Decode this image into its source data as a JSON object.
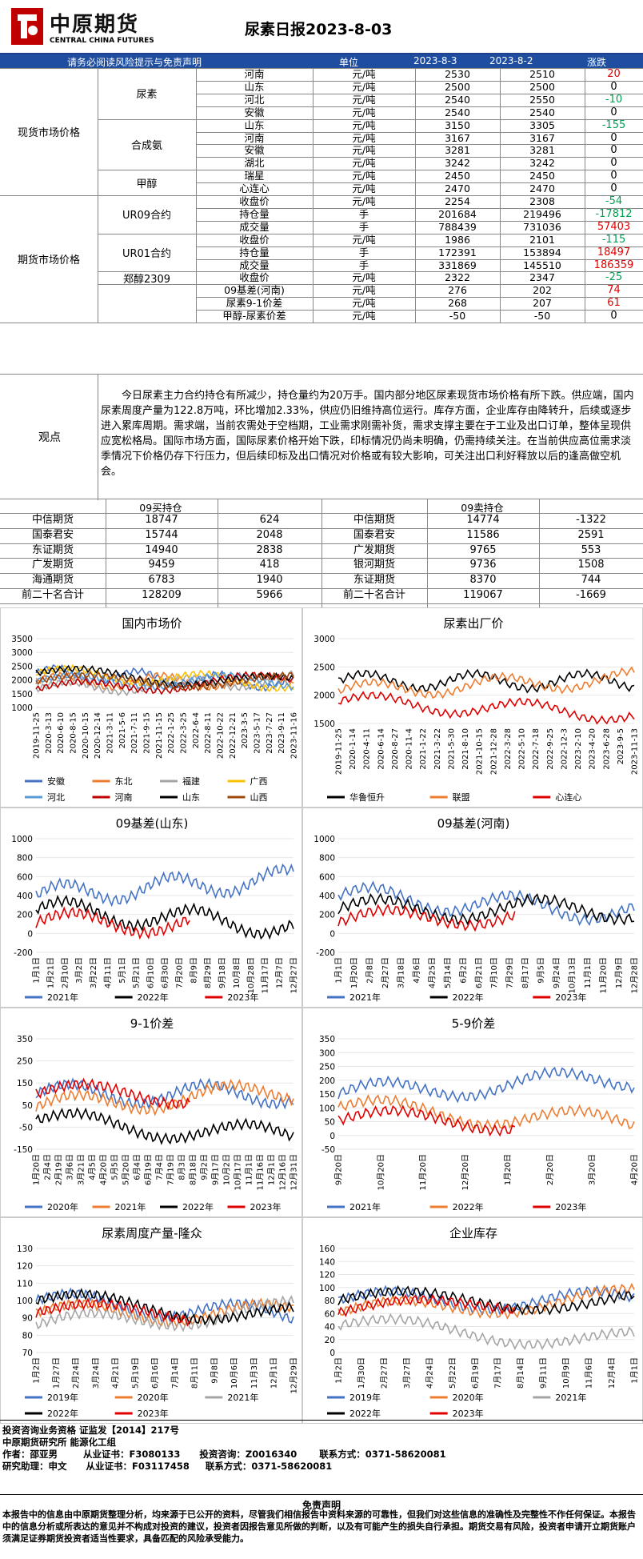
{
  "header": {
    "brand_cn": "中原期货",
    "brand_en": "CENTRAL CHINA FUTURES",
    "title": "尿素日报2023-8-03"
  },
  "table_header": {
    "notice": "请务必阅读风险提示与免责声明",
    "unit": "单位",
    "d1": "2023-8-3",
    "d2": "2023-8-2",
    "chg": "涨跌"
  },
  "spot": {
    "section": "现货市场价格",
    "groups": [
      {
        "name": "尿素",
        "rows": [
          {
            "item": "河南",
            "unit": "元/吨",
            "v1": "2530",
            "v2": "2510",
            "chg": "20",
            "dir": "up"
          },
          {
            "item": "山东",
            "unit": "元/吨",
            "v1": "2500",
            "v2": "2500",
            "chg": "0",
            "dir": "flat"
          },
          {
            "item": "河北",
            "unit": "元/吨",
            "v1": "2540",
            "v2": "2550",
            "chg": "-10",
            "dir": "down"
          },
          {
            "item": "安徽",
            "unit": "元/吨",
            "v1": "2540",
            "v2": "2540",
            "chg": "0",
            "dir": "flat"
          }
        ]
      },
      {
        "name": "合成氨",
        "rows": [
          {
            "item": "山东",
            "unit": "元/吨",
            "v1": "3150",
            "v2": "3305",
            "chg": "-155",
            "dir": "down"
          },
          {
            "item": "河南",
            "unit": "元/吨",
            "v1": "3167",
            "v2": "3167",
            "chg": "0",
            "dir": "flat"
          },
          {
            "item": "安徽",
            "unit": "元/吨",
            "v1": "3281",
            "v2": "3281",
            "chg": "0",
            "dir": "flat"
          },
          {
            "item": "湖北",
            "unit": "元/吨",
            "v1": "3242",
            "v2": "3242",
            "chg": "0",
            "dir": "flat"
          }
        ]
      },
      {
        "name": "甲醇",
        "rows": [
          {
            "item": "瑞星",
            "unit": "元/吨",
            "v1": "2450",
            "v2": "2450",
            "chg": "0",
            "dir": "flat"
          },
          {
            "item": "心连心",
            "unit": "元/吨",
            "v1": "2470",
            "v2": "2470",
            "chg": "0",
            "dir": "flat"
          }
        ]
      }
    ]
  },
  "futures": {
    "section": "期货市场价格",
    "groups": [
      {
        "name": "UR09合约",
        "rows": [
          {
            "item": "收盘价",
            "unit": "元/吨",
            "v1": "2254",
            "v2": "2308",
            "chg": "-54",
            "dir": "down"
          },
          {
            "item": "持仓量",
            "unit": "手",
            "v1": "201684",
            "v2": "219496",
            "chg": "-17812",
            "dir": "down"
          },
          {
            "item": "成交量",
            "unit": "手",
            "v1": "788439",
            "v2": "731036",
            "chg": "57403",
            "dir": "up"
          }
        ]
      },
      {
        "name": "UR01合约",
        "rows": [
          {
            "item": "收盘价",
            "unit": "元/吨",
            "v1": "1986",
            "v2": "2101",
            "chg": "-115",
            "dir": "down"
          },
          {
            "item": "持仓量",
            "unit": "手",
            "v1": "172391",
            "v2": "153894",
            "chg": "18497",
            "dir": "up"
          },
          {
            "item": "成交量",
            "unit": "手",
            "v1": "331869",
            "v2": "145510",
            "chg": "186359",
            "dir": "up"
          }
        ]
      },
      {
        "name": "郑醇2309",
        "rows": [
          {
            "item": "收盘价",
            "unit": "元/吨",
            "v1": "2322",
            "v2": "2347",
            "chg": "-25",
            "dir": "down"
          }
        ]
      },
      {
        "name": "",
        "rows": [
          {
            "item": "09基差(河南)",
            "unit": "元/吨",
            "v1": "276",
            "v2": "202",
            "chg": "74",
            "dir": "up"
          },
          {
            "item": "尿素9-1价差",
            "unit": "元/吨",
            "v1": "268",
            "v2": "207",
            "chg": "61",
            "dir": "up"
          },
          {
            "item": "甲醇-尿素价差",
            "unit": "元/吨",
            "v1": "-50",
            "v2": "-50",
            "chg": "0",
            "dir": "flat"
          }
        ]
      }
    ]
  },
  "view": {
    "label": "观点",
    "text": "今日尿素主力合约持仓有所减少，持仓量约为20万手。国内部分地区尿素现货市场价格有所下跌。供应端，国内尿素周度产量为122.8万吨，环比增加2.33%，供应仍旧维持高位运行。库存方面，企业库存由降转升，后续或逐步进入累库周期。需求端，当前农需处于空档期，工业需求刚需补货，需求支撑主要在于工业及出口订单，整体呈现供应宽松格局。国际市场方面，国际尿素价格开始下跌，印标情况仍尚未明确，仍需持续关注。在当前供应高位需求淡季情况下价格仍存下行压力，但后续印标及出口情况对价格或有较大影响，可关注出口利好释放以后的逢高做空机会。"
  },
  "positions": {
    "buy_title": "09买持仓",
    "sell_title": "09卖持仓",
    "buy": [
      [
        "中信期货",
        "18747",
        "624"
      ],
      [
        "国泰君安",
        "15744",
        "2048"
      ],
      [
        "东证期货",
        "14940",
        "2838"
      ],
      [
        "广发期货",
        "9459",
        "418"
      ],
      [
        "海通期货",
        "6783",
        "1940"
      ],
      [
        "前二十名合计",
        "128209",
        "5966"
      ]
    ],
    "sell": [
      [
        "中信期货",
        "14774",
        "-1322"
      ],
      [
        "国泰君安",
        "11586",
        "2591"
      ],
      [
        "广发期货",
        "9765",
        "553"
      ],
      [
        "银河期货",
        "9736",
        "1508"
      ],
      [
        "东证期货",
        "8370",
        "744"
      ],
      [
        "前二十名合计",
        "119067",
        "-1669"
      ]
    ]
  },
  "chart_data": [
    {
      "type": "line",
      "title": "国内市场价",
      "ylim": [
        1000,
        3500
      ],
      "yticks": [
        "3500",
        "3000",
        "2500",
        "2000",
        "1500",
        "1000"
      ],
      "xticks": [
        "2019-11-25",
        "2020-3-13",
        "2020-6-10",
        "2020-8-15",
        "2020-10-15",
        "2020-12-14",
        "2021-3-11",
        "2021-5-6",
        "2021-7-11",
        "2021-9-15",
        "2021-11-15",
        "2022-1-25",
        "2022-3-25",
        "2022-6-4",
        "2022-8-11",
        "2022-10-22",
        "2022-12-21",
        "2023-3-5",
        "2023-5-17",
        "2023-7-27",
        "2023-9-11",
        "2023-11-16"
      ],
      "series": [
        {
          "name": "安徽",
          "color": "#4472c4"
        },
        {
          "name": "东北",
          "color": "#ed7d31"
        },
        {
          "name": "福建",
          "color": "#a5a5a5"
        },
        {
          "name": "广西",
          "color": "#ffc000"
        },
        {
          "name": "河北",
          "color": "#5b9bd5"
        },
        {
          "name": "河南",
          "color": "#c00000"
        },
        {
          "name": "山东",
          "color": "#000000"
        },
        {
          "name": "山西",
          "color": "#9e480e"
        }
      ]
    },
    {
      "type": "line",
      "title": "尿素出厂价",
      "ylim": [
        1500,
        3000
      ],
      "yticks": [
        "3000",
        "2500",
        "2000",
        "1500"
      ],
      "xticks": [
        "2019-11-25",
        "2020-1-14",
        "2020-4-11",
        "2020-6-14",
        "2020-8-27",
        "2020-11-4",
        "2021-1-22",
        "2021-3-22",
        "2021-5-30",
        "2021-8-10",
        "2021-10-15",
        "2021-12-28",
        "2022-3-28",
        "2022-5-10",
        "2022-7-18",
        "2022-9-25",
        "2022-12-3",
        "2023-2-10",
        "2023-4-20",
        "2023-6-28",
        "2023-9-5",
        "2023-11-13"
      ],
      "series": [
        {
          "name": "华鲁恒升",
          "color": "#000000"
        },
        {
          "name": "联盟",
          "color": "#ed7d31"
        },
        {
          "name": "心连心",
          "color": "#e00000"
        }
      ]
    },
    {
      "type": "line",
      "title": "09基差(山东)",
      "ylim": [
        -200,
        1000
      ],
      "yticks": [
        "1000",
        "800",
        "600",
        "400",
        "200",
        "0",
        "-200"
      ],
      "xticks": [
        "1月1日",
        "1月21日",
        "2月10日",
        "3月2日",
        "3月22日",
        "4月11日",
        "5月1日",
        "5月21日",
        "6月10日",
        "6月30日",
        "7月20日",
        "8月9日",
        "8月29日",
        "9月18日",
        "10月8日",
        "10月28日",
        "11月17日",
        "12月7日",
        "12月27日"
      ],
      "series": [
        {
          "name": "2021年",
          "color": "#4472c4"
        },
        {
          "name": "2022年",
          "color": "#000000"
        },
        {
          "name": "2023年",
          "color": "#e00000"
        }
      ]
    },
    {
      "type": "line",
      "title": "09基差(河南)",
      "ylim": [
        -200,
        1000
      ],
      "yticks": [
        "1000",
        "800",
        "600",
        "400",
        "200",
        "0",
        "-200"
      ],
      "xticks": [
        "1月1日",
        "1月20日",
        "2月8日",
        "2月27日",
        "3月18日",
        "4月6日",
        "4月25日",
        "5月14日",
        "6月2日",
        "6月21日",
        "7月10日",
        "7月29日",
        "8月17日",
        "9月5日",
        "9月24日",
        "10月13日",
        "11月1日",
        "11月20日",
        "12月9日",
        "12月28日"
      ],
      "series": [
        {
          "name": "2021年",
          "color": "#4472c4"
        },
        {
          "name": "2022年",
          "color": "#000000"
        },
        {
          "name": "2023年",
          "color": "#e00000"
        }
      ]
    },
    {
      "type": "line",
      "title": "9-1价差",
      "ylim": [
        -150,
        350
      ],
      "yticks": [
        "350",
        "250",
        "150",
        "50",
        "-50",
        "-150"
      ],
      "xticks": [
        "1月20日",
        "2月4日",
        "2月19日",
        "3月6日",
        "3月21日",
        "4月5日",
        "4月20日",
        "5月5日",
        "5月20日",
        "6月4日",
        "6月19日",
        "7月4日",
        "7月19日",
        "8月3日",
        "8月18日",
        "9月2日",
        "9月17日",
        "10月2日",
        "10月17日",
        "11月1日",
        "11月16日",
        "12月1日",
        "12月16日",
        "12月31日"
      ],
      "series": [
        {
          "name": "2020年",
          "color": "#4472c4"
        },
        {
          "name": "2021年",
          "color": "#ed7d31"
        },
        {
          "name": "2022年",
          "color": "#000000"
        },
        {
          "name": "2023年",
          "color": "#e00000"
        }
      ]
    },
    {
      "type": "line",
      "title": "5-9价差",
      "ylim": [
        -50,
        350
      ],
      "yticks": [
        "350",
        "300",
        "250",
        "200",
        "150",
        "100",
        "50",
        "0",
        "-50"
      ],
      "xticks": [
        "9月20日",
        "10月20日",
        "11月20日",
        "12月20日",
        "1月20日",
        "2月20日",
        "3月20日",
        "4月20日"
      ],
      "series": [
        {
          "name": "2021年",
          "color": "#4472c4"
        },
        {
          "name": "2022年",
          "color": "#ed7d31"
        },
        {
          "name": "2023年",
          "color": "#e00000"
        }
      ]
    },
    {
      "type": "line",
      "title": "尿素周度产量-隆众",
      "ylim": [
        70,
        130
      ],
      "yticks": [
        "130",
        "120",
        "110",
        "100",
        "90",
        "80",
        "70"
      ],
      "xticks": [
        "1月2日",
        "1月27日",
        "2月24日",
        "3月24日",
        "4月21日",
        "5月19日",
        "6月16日",
        "7月14日",
        "8月11日",
        "9月8日",
        "10月6日",
        "11月3日",
        "12月1日",
        "12月29日"
      ],
      "series": [
        {
          "name": "2019年",
          "color": "#4472c4"
        },
        {
          "name": "2020年",
          "color": "#ed7d31"
        },
        {
          "name": "2021年",
          "color": "#a5a5a5"
        },
        {
          "name": "2022年",
          "color": "#000000"
        },
        {
          "name": "2023年",
          "color": "#e00000"
        }
      ]
    },
    {
      "type": "line",
      "title": "企业库存",
      "ylim": [
        0,
        160
      ],
      "yticks": [
        "160",
        "140",
        "120",
        "100",
        "80",
        "60",
        "40",
        "20",
        "0"
      ],
      "xticks": [
        "1月2日",
        "1月30日",
        "2月27日",
        "3月27日",
        "4月24日",
        "5月22日",
        "6月19日",
        "7月17日",
        "8月14日",
        "9月11日",
        "10月9日",
        "11月6日",
        "12月4日",
        "1月1日"
      ],
      "series": [
        {
          "name": "2019年",
          "color": "#4472c4"
        },
        {
          "name": "2020年",
          "color": "#ed7d31"
        },
        {
          "name": "2021年",
          "color": "#a5a5a5"
        },
        {
          "name": "2022年",
          "color": "#000000"
        },
        {
          "name": "2023年",
          "color": "#e00000"
        }
      ]
    }
  ],
  "footer": {
    "line1": "投资咨询业务资格   证监发【2014】217号",
    "line2": "中原期货研究所   能源化工组",
    "line3": "作者：邵亚男        从业证书：F3080133      投资咨询：Z0016340       联系方式：0371-58620081",
    "line4": "研究助理：申文      从业证书：F03117458     联系方式：0371-58620081",
    "disclaimer_title": "免责声明",
    "disclaimer": "本报告中的信息由中原期货整理分析，均来源于已公开的资料，尽管我们相信报告中资料来源的可靠性，但我们对这些信息的准确性及完整性不作任何保证。本报告中的信息分析或所表达的意见并不构成对投资的建议，投资者因报告意见所做的判断，以及有可能产生的损失自行承担。期货交易有风险，投资者申请开立期货账户须满足证券期货投资者适当性要求，具备匹配的风险承受能力。"
  }
}
